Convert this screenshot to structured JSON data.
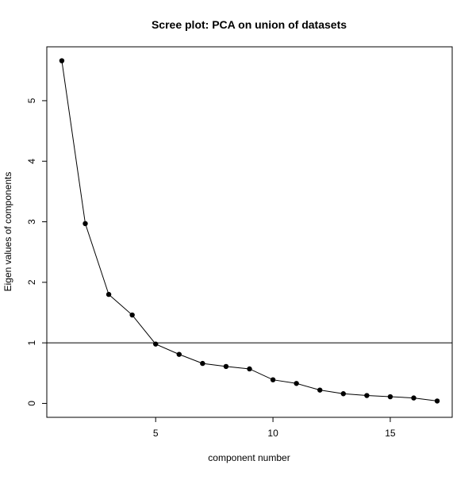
{
  "chart_data": {
    "type": "line",
    "title": "Scree plot: PCA on union of datasets",
    "xlabel": "component number",
    "ylabel": "Eigen values of components",
    "xlim": [
      0.36,
      17.64
    ],
    "ylim": [
      -0.23,
      5.89
    ],
    "x_ticks": [
      5,
      10,
      15
    ],
    "y_ticks": [
      0,
      1,
      2,
      3,
      4,
      5
    ],
    "x_tick_labels": [
      "5",
      "10",
      "15"
    ],
    "y_tick_labels": [
      "0",
      "1",
      "2",
      "3",
      "4",
      "5"
    ],
    "grid": false,
    "legend": "none",
    "reference_line": {
      "orientation": "horizontal",
      "y": 1
    },
    "series": [
      {
        "x": [
          1,
          2,
          3,
          4,
          5,
          6,
          7,
          8,
          9,
          10,
          11,
          12,
          13,
          14,
          15,
          16,
          17
        ],
        "values": [
          5.66,
          2.97,
          1.8,
          1.46,
          0.98,
          0.81,
          0.66,
          0.61,
          0.57,
          0.39,
          0.33,
          0.22,
          0.16,
          0.13,
          0.11,
          0.09,
          0.04
        ]
      }
    ],
    "colors": {
      "line": "#000000",
      "points": "#000000",
      "axes": "#000000"
    }
  }
}
